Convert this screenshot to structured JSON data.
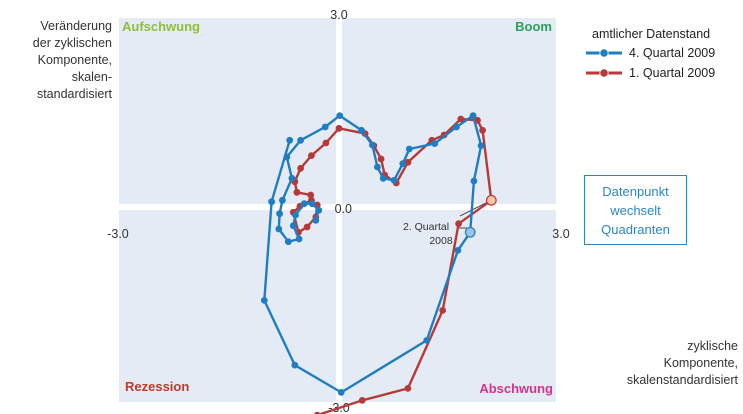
{
  "chart_data": {
    "type": "line",
    "ylabel": "Veränderung der zyklischen Komponente, skalen-standardisiert",
    "ylabel_lines": [
      "Veränderung",
      "der zyklischen",
      "Komponente,",
      "skalen-",
      "standardisiert"
    ],
    "xlabel_lines": [
      "zyklische",
      "Komponente,",
      "skalenstandardisiert"
    ],
    "xlim": [
      -3.0,
      3.0
    ],
    "ylim": [
      -3.0,
      3.0
    ],
    "ticks": {
      "x_min": "-3.0",
      "x_max": "3.0",
      "y_min": "-3.0",
      "y_max": "3.0",
      "origin": "0.0"
    },
    "quadrants": [
      {
        "label": "Aufschwung",
        "position": "top-left",
        "color": "#8fbe3a"
      },
      {
        "label": "Boom",
        "position": "top-right",
        "color": "#2e9e5b"
      },
      {
        "label": "Rezession",
        "position": "bottom-left",
        "color": "#c0392b"
      },
      {
        "label": "Abschwung",
        "position": "bottom-right",
        "color": "#d6338c"
      }
    ],
    "legend_title": "amtlicher Datenstand",
    "legend_position": "top-right",
    "series": [
      {
        "name": "4. Quartal 2009",
        "color": "#1f7ec2",
        "points": [
          [
            -0.32,
            -0.2
          ],
          [
            -0.28,
            -0.05
          ],
          [
            -0.37,
            0.05
          ],
          [
            -0.48,
            0.05
          ],
          [
            -0.6,
            -0.12
          ],
          [
            -0.63,
            -0.28
          ],
          [
            -0.55,
            -0.48
          ],
          [
            -0.7,
            -0.52
          ],
          [
            -0.83,
            -0.33
          ],
          [
            -0.82,
            -0.1
          ],
          [
            -0.78,
            0.1
          ],
          [
            -0.65,
            0.43
          ],
          [
            -0.72,
            0.75
          ],
          [
            -0.53,
            1.0
          ],
          [
            -0.19,
            1.2
          ],
          [
            0.01,
            1.37
          ],
          [
            0.31,
            1.15
          ],
          [
            0.46,
            0.93
          ],
          [
            0.53,
            0.6
          ],
          [
            0.61,
            0.43
          ],
          [
            0.76,
            0.4
          ],
          [
            0.88,
            0.65
          ],
          [
            0.97,
            0.87
          ],
          [
            1.32,
            0.95
          ],
          [
            1.62,
            1.2
          ],
          [
            1.85,
            1.37
          ],
          [
            1.96,
            0.92
          ],
          [
            1.86,
            0.39
          ],
          [
            1.81,
            -0.38
          ],
          [
            1.64,
            -0.65
          ],
          [
            1.21,
            -2.0
          ],
          [
            0.03,
            -2.78
          ],
          [
            -0.61,
            -2.37
          ],
          [
            -1.03,
            -1.4
          ],
          [
            -0.93,
            0.08
          ],
          [
            -0.68,
            1.0
          ]
        ]
      },
      {
        "name": "1. Quartal 2009",
        "color": "#b73a3a",
        "points": [
          [
            -0.3,
            0.03
          ],
          [
            -0.32,
            -0.15
          ],
          [
            -0.44,
            -0.3
          ],
          [
            -0.56,
            -0.38
          ],
          [
            -0.63,
            -0.08
          ],
          [
            -0.54,
            0.01
          ],
          [
            -0.38,
            0.1
          ],
          [
            -0.39,
            0.18
          ],
          [
            -0.58,
            0.22
          ],
          [
            -0.61,
            0.38
          ],
          [
            -0.53,
            0.58
          ],
          [
            -0.38,
            0.77
          ],
          [
            -0.18,
            0.96
          ],
          [
            0.0,
            1.18
          ],
          [
            0.36,
            1.1
          ],
          [
            0.48,
            0.92
          ],
          [
            0.58,
            0.72
          ],
          [
            0.63,
            0.48
          ],
          [
            0.79,
            0.36
          ],
          [
            0.95,
            0.67
          ],
          [
            1.28,
            1.0
          ],
          [
            1.45,
            1.08
          ],
          [
            1.68,
            1.32
          ],
          [
            1.91,
            1.3
          ],
          [
            1.98,
            1.15
          ],
          [
            2.1,
            0.1
          ],
          [
            1.65,
            -0.25
          ],
          [
            1.43,
            -1.55
          ],
          [
            0.95,
            -2.72
          ],
          [
            0.32,
            -2.9
          ],
          [
            -0.3,
            -3.12
          ]
        ]
      }
    ],
    "highlighted_points": [
      {
        "x": 2.1,
        "y": 0.1,
        "color": "#f7c59f"
      },
      {
        "x": 1.81,
        "y": -0.38,
        "color": "#9cc3e6"
      }
    ],
    "annotations": [
      {
        "text_lines": [
          "2. Quartal",
          "2008"
        ],
        "points_to": [
          2.1,
          0.1
        ]
      },
      {
        "text_lines": [
          "Datenpunkt",
          "wechselt",
          "Quadranten"
        ],
        "boxed": true
      }
    ],
    "grid": false
  }
}
